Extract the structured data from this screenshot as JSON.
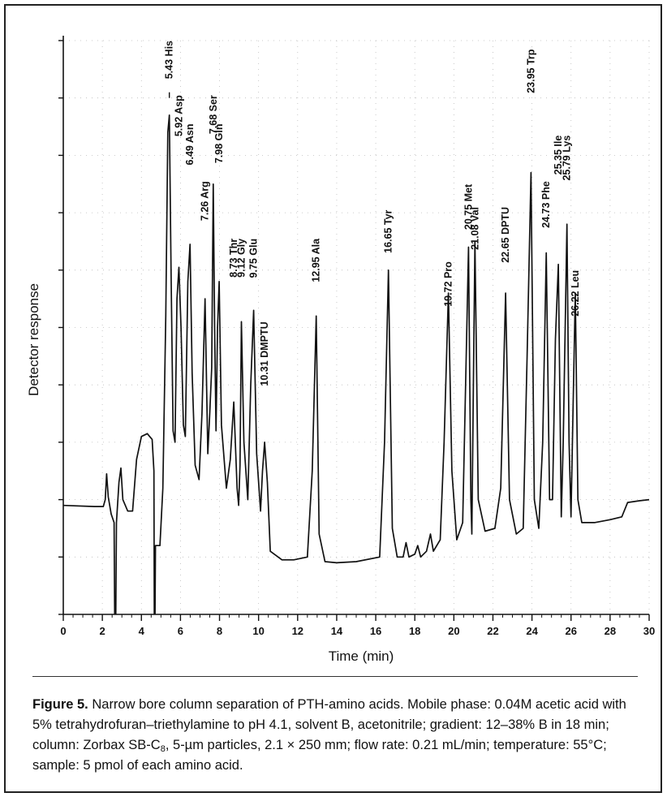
{
  "chart_data": {
    "type": "line",
    "title": "",
    "xlabel": "Time (min)",
    "ylabel": "Detector response",
    "xlim": [
      0,
      30
    ],
    "xticks": [
      0,
      2,
      4,
      6,
      8,
      10,
      12,
      14,
      16,
      18,
      20,
      22,
      24,
      26,
      28,
      30
    ],
    "ylim": [
      0,
      1
    ],
    "y_tick_labels": false,
    "grid": false,
    "baseline": 0.19,
    "trace": [
      [
        0,
        0.19
      ],
      [
        1.6,
        0.188
      ],
      [
        2.05,
        0.188
      ],
      [
        2.15,
        0.2
      ],
      [
        2.22,
        0.245
      ],
      [
        2.3,
        0.205
      ],
      [
        2.45,
        0.175
      ],
      [
        2.6,
        0.16
      ],
      [
        2.66,
        -0.15
      ],
      [
        2.72,
        0.16
      ],
      [
        2.85,
        0.23
      ],
      [
        2.95,
        0.255
      ],
      [
        3.05,
        0.2
      ],
      [
        3.3,
        0.18
      ],
      [
        3.55,
        0.18
      ],
      [
        3.75,
        0.27
      ],
      [
        4.0,
        0.31
      ],
      [
        4.3,
        0.315
      ],
      [
        4.55,
        0.305
      ],
      [
        4.64,
        0.25
      ],
      [
        4.67,
        -0.15
      ],
      [
        4.72,
        0.12
      ],
      [
        4.95,
        0.12
      ],
      [
        5.1,
        0.22
      ],
      [
        5.25,
        0.52
      ],
      [
        5.35,
        0.84
      ],
      [
        5.43,
        0.87
      ],
      [
        5.52,
        0.6
      ],
      [
        5.62,
        0.32
      ],
      [
        5.72,
        0.3
      ],
      [
        5.82,
        0.55
      ],
      [
        5.92,
        0.605
      ],
      [
        6.03,
        0.5
      ],
      [
        6.15,
        0.33
      ],
      [
        6.25,
        0.31
      ],
      [
        6.38,
        0.58
      ],
      [
        6.49,
        0.645
      ],
      [
        6.6,
        0.42
      ],
      [
        6.75,
        0.26
      ],
      [
        6.95,
        0.235
      ],
      [
        7.1,
        0.35
      ],
      [
        7.26,
        0.55
      ],
      [
        7.4,
        0.28
      ],
      [
        7.5,
        0.35
      ],
      [
        7.6,
        0.43
      ],
      [
        7.68,
        0.75
      ],
      [
        7.75,
        0.5
      ],
      [
        7.82,
        0.32
      ],
      [
        7.9,
        0.5
      ],
      [
        7.98,
        0.58
      ],
      [
        8.1,
        0.33
      ],
      [
        8.35,
        0.22
      ],
      [
        8.55,
        0.27
      ],
      [
        8.73,
        0.37
      ],
      [
        8.9,
        0.22
      ],
      [
        8.98,
        0.19
      ],
      [
        9.05,
        0.26
      ],
      [
        9.12,
        0.51
      ],
      [
        9.25,
        0.3
      ],
      [
        9.45,
        0.2
      ],
      [
        9.6,
        0.4
      ],
      [
        9.75,
        0.53
      ],
      [
        9.9,
        0.28
      ],
      [
        10.1,
        0.18
      ],
      [
        10.2,
        0.25
      ],
      [
        10.31,
        0.3
      ],
      [
        10.45,
        0.23
      ],
      [
        10.6,
        0.11
      ],
      [
        11.2,
        0.095
      ],
      [
        11.8,
        0.095
      ],
      [
        12.5,
        0.1
      ],
      [
        12.75,
        0.25
      ],
      [
        12.95,
        0.52
      ],
      [
        13.1,
        0.14
      ],
      [
        13.4,
        0.092
      ],
      [
        14.0,
        0.09
      ],
      [
        15.0,
        0.092
      ],
      [
        16.2,
        0.1
      ],
      [
        16.45,
        0.3
      ],
      [
        16.65,
        0.6
      ],
      [
        16.85,
        0.15
      ],
      [
        17.1,
        0.1
      ],
      [
        17.4,
        0.1
      ],
      [
        17.55,
        0.125
      ],
      [
        17.7,
        0.1
      ],
      [
        18.0,
        0.105
      ],
      [
        18.15,
        0.12
      ],
      [
        18.3,
        0.1
      ],
      [
        18.6,
        0.11
      ],
      [
        18.8,
        0.14
      ],
      [
        18.95,
        0.11
      ],
      [
        19.3,
        0.13
      ],
      [
        19.5,
        0.3
      ],
      [
        19.72,
        0.56
      ],
      [
        19.9,
        0.25
      ],
      [
        20.15,
        0.13
      ],
      [
        20.45,
        0.16
      ],
      [
        20.6,
        0.4
      ],
      [
        20.75,
        0.64
      ],
      [
        20.87,
        0.2
      ],
      [
        20.92,
        0.14
      ],
      [
        21.0,
        0.4
      ],
      [
        21.08,
        0.65
      ],
      [
        21.25,
        0.2
      ],
      [
        21.6,
        0.145
      ],
      [
        22.1,
        0.15
      ],
      [
        22.4,
        0.22
      ],
      [
        22.65,
        0.56
      ],
      [
        22.85,
        0.2
      ],
      [
        23.2,
        0.14
      ],
      [
        23.55,
        0.15
      ],
      [
        23.75,
        0.45
      ],
      [
        23.95,
        0.77
      ],
      [
        24.12,
        0.2
      ],
      [
        24.35,
        0.15
      ],
      [
        24.55,
        0.3
      ],
      [
        24.73,
        0.63
      ],
      [
        24.9,
        0.2
      ],
      [
        25.05,
        0.2
      ],
      [
        25.2,
        0.48
      ],
      [
        25.35,
        0.61
      ],
      [
        25.5,
        0.17
      ],
      [
        25.6,
        0.3
      ],
      [
        25.79,
        0.68
      ],
      [
        25.9,
        0.3
      ],
      [
        26.0,
        0.17
      ],
      [
        26.1,
        0.35
      ],
      [
        26.22,
        0.56
      ],
      [
        26.35,
        0.2
      ],
      [
        26.55,
        0.16
      ],
      [
        27.2,
        0.16
      ],
      [
        28.0,
        0.165
      ],
      [
        28.6,
        0.17
      ],
      [
        28.9,
        0.195
      ],
      [
        29.5,
        0.198
      ],
      [
        30.0,
        0.2
      ]
    ],
    "peak_labels": [
      {
        "x": 5.43,
        "text": "5.43 His",
        "y": 1.0
      },
      {
        "x": 5.92,
        "text": "5.92 Asp",
        "y": 0.905
      },
      {
        "x": 6.49,
        "text": "6.49 Asn",
        "y": 0.855
      },
      {
        "x": 7.26,
        "text": "7.26 Arg",
        "y": 0.755
      },
      {
        "x": 7.68,
        "text": "7.68 Ser",
        "y": 0.905
      },
      {
        "x": 7.98,
        "text": "7.98 Gln",
        "y": 0.855
      },
      {
        "x": 8.73,
        "text": "8.73 Thr",
        "y": 0.655
      },
      {
        "x": 9.12,
        "text": "9.12 Gly",
        "y": 0.655
      },
      {
        "x": 9.75,
        "text": "9.75 Glu",
        "y": 0.655
      },
      {
        "x": 10.31,
        "text": "10.31 DMPTU",
        "y": 0.51
      },
      {
        "x": 12.95,
        "text": "12.95 Ala",
        "y": 0.655
      },
      {
        "x": 16.65,
        "text": "16.65 Tyr",
        "y": 0.705
      },
      {
        "x": 19.72,
        "text": "19.72 Pro",
        "y": 0.615
      },
      {
        "x": 20.75,
        "text": "20.75 Met",
        "y": 0.75
      },
      {
        "x": 21.08,
        "text": "21.08 Val",
        "y": 0.71
      },
      {
        "x": 22.65,
        "text": "22.65 DPTU",
        "y": 0.71
      },
      {
        "x": 23.95,
        "text": "23.95 Trp",
        "y": 0.985
      },
      {
        "x": 24.73,
        "text": "24.73 Phe",
        "y": 0.755
      },
      {
        "x": 25.35,
        "text": "25.35 Ile",
        "y": 0.835
      },
      {
        "x": 25.79,
        "text": "25.79 Lys",
        "y": 0.835
      },
      {
        "x": 26.22,
        "text": "26.22 Leu",
        "y": 0.6
      }
    ]
  },
  "caption": {
    "label": "Figure 5.",
    "part1": " Narrow bore column separation of PTH-amino acids. Mobile phase: 0.04M acetic acid with 5% tetrahydrofuran–triethylamine to pH 4.1, solvent B, acetonitrile; gradient: 12–38% B in 18 min; column: Zorbax SB-C",
    "subscript": "8",
    "part2": ", 5-µm particles, 2.1 × 250 mm; flow rate: 0.21 mL/min; temperature: 55°C; sample: 5 pmol of each amino acid."
  },
  "colors": {
    "trace": "#111111",
    "axis": "#111111",
    "frame": "#222222"
  }
}
